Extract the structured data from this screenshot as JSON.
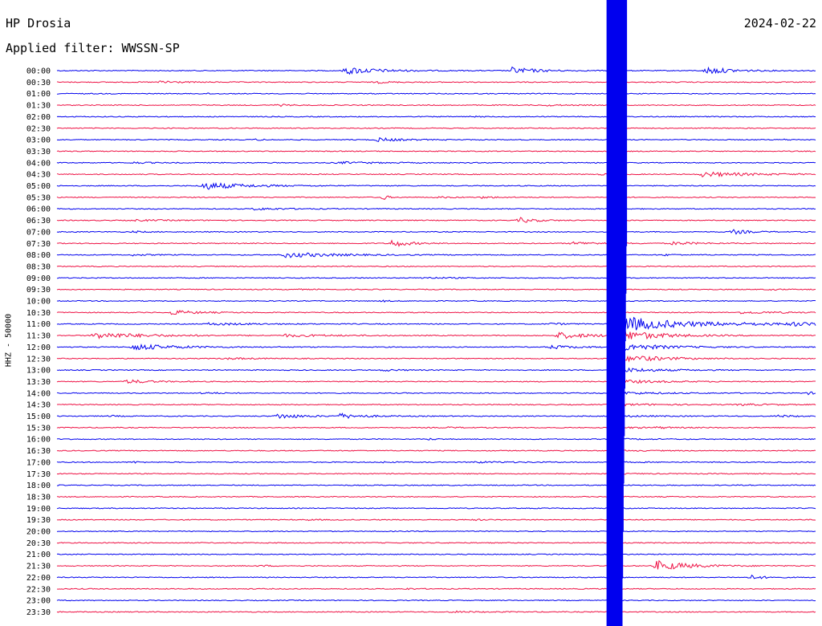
{
  "header": {
    "station": "HP Drosia",
    "date": "2024-02-22",
    "filter": "Applied filter: WWSSN-SP"
  },
  "axis": {
    "ylabel": "HHZ - 50000"
  },
  "colors": {
    "trace_a": "#0000ee",
    "trace_b": "#ee1144",
    "background": "#ffffff",
    "text": "#000000"
  },
  "chart_data": {
    "type": "line",
    "title": "HP Drosia",
    "subtitle": "Applied filter: WWSSN-SP",
    "ylabel": "HHZ - 50000",
    "tick_labels": [
      "00:00",
      "00:30",
      "01:00",
      "01:30",
      "02:00",
      "02:30",
      "03:00",
      "03:30",
      "04:00",
      "04:30",
      "05:00",
      "05:30",
      "06:00",
      "06:30",
      "07:00",
      "07:30",
      "08:00",
      "08:30",
      "09:00",
      "09:30",
      "10:00",
      "10:30",
      "11:00",
      "11:30",
      "12:00",
      "12:30",
      "13:00",
      "13:30",
      "14:00",
      "14:30",
      "15:00",
      "15:30",
      "16:00",
      "16:30",
      "17:00",
      "17:30",
      "18:00",
      "18:30",
      "19:00",
      "19:30",
      "20:00",
      "20:30",
      "21:00",
      "21:30",
      "22:00",
      "22:30",
      "23:00",
      "23:30"
    ],
    "row_minutes": 30,
    "grid": false,
    "major_event": {
      "start_row": 0,
      "end_row": 47,
      "t_frac_start": 0.725,
      "t_frac_end": 0.745,
      "peak_row": 22,
      "coda_end_row": 40
    },
    "events": [
      {
        "row": 0,
        "t": 0.043,
        "amp": 0.4,
        "dur": 0.004
      },
      {
        "row": 0,
        "t": 0.38,
        "amp": 3.0,
        "dur": 0.04
      },
      {
        "row": 0,
        "t": 0.6,
        "amp": 2.5,
        "dur": 0.03
      },
      {
        "row": 0,
        "t": 0.855,
        "amp": 3.0,
        "dur": 0.03
      },
      {
        "row": 1,
        "t": 0.135,
        "amp": 1.5,
        "dur": 0.02
      },
      {
        "row": 1,
        "t": 0.42,
        "amp": 0.8,
        "dur": 0.02
      },
      {
        "row": 2,
        "t": 0.2,
        "amp": 0.3,
        "dur": 0.01
      },
      {
        "row": 3,
        "t": 0.29,
        "amp": 0.8,
        "dur": 0.015
      },
      {
        "row": 3,
        "t": 0.645,
        "amp": 0.5,
        "dur": 0.02
      },
      {
        "row": 4,
        "t": 0.545,
        "amp": 0.5,
        "dur": 0.01
      },
      {
        "row": 6,
        "t": 0.26,
        "amp": 0.7,
        "dur": 0.01
      },
      {
        "row": 6,
        "t": 0.42,
        "amp": 1.5,
        "dur": 0.03
      },
      {
        "row": 6,
        "t": 0.955,
        "amp": 0.5,
        "dur": 0.01
      },
      {
        "row": 8,
        "t": 0.1,
        "amp": 0.6,
        "dur": 0.02
      },
      {
        "row": 8,
        "t": 0.37,
        "amp": 0.7,
        "dur": 0.05
      },
      {
        "row": 9,
        "t": 0.85,
        "amp": 1.8,
        "dur": 0.06
      },
      {
        "row": 9,
        "t": 0.715,
        "amp": 0.5,
        "dur": 0.01
      },
      {
        "row": 10,
        "t": 0.19,
        "amp": 3.0,
        "dur": 0.05
      },
      {
        "row": 11,
        "t": 0.43,
        "amp": 2.8,
        "dur": 0.005
      },
      {
        "row": 11,
        "t": 0.5,
        "amp": 0.6,
        "dur": 0.02
      },
      {
        "row": 11,
        "t": 0.56,
        "amp": 0.6,
        "dur": 0.02
      },
      {
        "row": 12,
        "t": 0.26,
        "amp": 0.8,
        "dur": 0.04
      },
      {
        "row": 13,
        "t": 0.1,
        "amp": 0.5,
        "dur": 0.05
      },
      {
        "row": 13,
        "t": 0.61,
        "amp": 2.0,
        "dur": 0.02
      },
      {
        "row": 14,
        "t": 0.1,
        "amp": 0.5,
        "dur": 0.02
      },
      {
        "row": 14,
        "t": 0.89,
        "amp": 1.8,
        "dur": 0.02
      },
      {
        "row": 15,
        "t": 0.44,
        "amp": 3.0,
        "dur": 0.02
      },
      {
        "row": 15,
        "t": 0.68,
        "amp": 1.0,
        "dur": 0.04
      },
      {
        "row": 15,
        "t": 0.81,
        "amp": 1.2,
        "dur": 0.03
      },
      {
        "row": 16,
        "t": 0.1,
        "amp": 0.6,
        "dur": 0.02
      },
      {
        "row": 16,
        "t": 0.3,
        "amp": 2.0,
        "dur": 0.06
      },
      {
        "row": 16,
        "t": 0.8,
        "amp": 0.5,
        "dur": 0.02
      },
      {
        "row": 18,
        "t": 0.48,
        "amp": 0.5,
        "dur": 0.04
      },
      {
        "row": 19,
        "t": 0.31,
        "amp": 0.6,
        "dur": 0.01
      },
      {
        "row": 19,
        "t": 0.94,
        "amp": 0.6,
        "dur": 0.01
      },
      {
        "row": 20,
        "t": 0.43,
        "amp": 0.5,
        "dur": 0.01
      },
      {
        "row": 21,
        "t": 0.15,
        "amp": 1.8,
        "dur": 0.03
      },
      {
        "row": 21,
        "t": 0.9,
        "amp": 0.7,
        "dur": 0.06
      },
      {
        "row": 22,
        "t": 0.2,
        "amp": 0.8,
        "dur": 0.06
      },
      {
        "row": 22,
        "t": 0.65,
        "amp": 0.8,
        "dur": 0.02
      },
      {
        "row": 22,
        "t": 0.97,
        "amp": 0.9,
        "dur": 0.03
      },
      {
        "row": 23,
        "t": 0.05,
        "amp": 2.5,
        "dur": 0.06
      },
      {
        "row": 23,
        "t": 0.3,
        "amp": 0.9,
        "dur": 0.06
      },
      {
        "row": 23,
        "t": 0.66,
        "amp": 2.5,
        "dur": 0.04
      },
      {
        "row": 24,
        "t": 0.1,
        "amp": 2.5,
        "dur": 0.05
      },
      {
        "row": 24,
        "t": 0.65,
        "amp": 1.5,
        "dur": 0.03
      },
      {
        "row": 25,
        "t": 0.22,
        "amp": 0.6,
        "dur": 0.04
      },
      {
        "row": 25,
        "t": 0.76,
        "amp": 0.6,
        "dur": 0.04
      },
      {
        "row": 26,
        "t": 0.43,
        "amp": 0.7,
        "dur": 0.02
      },
      {
        "row": 27,
        "t": 0.09,
        "amp": 1.5,
        "dur": 0.03
      },
      {
        "row": 28,
        "t": 0.19,
        "amp": 0.7,
        "dur": 0.02
      },
      {
        "row": 28,
        "t": 0.99,
        "amp": 0.9,
        "dur": 0.01
      },
      {
        "row": 29,
        "t": 0.9,
        "amp": 0.6,
        "dur": 0.04
      },
      {
        "row": 30,
        "t": 0.07,
        "amp": 0.6,
        "dur": 0.01
      },
      {
        "row": 30,
        "t": 0.29,
        "amp": 2.0,
        "dur": 0.03
      },
      {
        "row": 30,
        "t": 0.37,
        "amp": 2.0,
        "dur": 0.03
      },
      {
        "row": 30,
        "t": 0.95,
        "amp": 0.8,
        "dur": 0.02
      },
      {
        "row": 31,
        "t": 0.51,
        "amp": 0.5,
        "dur": 0.02
      },
      {
        "row": 31,
        "t": 0.79,
        "amp": 0.5,
        "dur": 0.02
      },
      {
        "row": 32,
        "t": 0.49,
        "amp": 0.6,
        "dur": 0.01
      },
      {
        "row": 34,
        "t": 0.1,
        "amp": 0.6,
        "dur": 0.01
      },
      {
        "row": 34,
        "t": 0.43,
        "amp": 0.5,
        "dur": 0.01
      },
      {
        "row": 34,
        "t": 0.55,
        "amp": 0.5,
        "dur": 0.05
      },
      {
        "row": 39,
        "t": 0.33,
        "amp": 0.5,
        "dur": 0.01
      },
      {
        "row": 39,
        "t": 0.55,
        "amp": 0.5,
        "dur": 0.01
      },
      {
        "row": 43,
        "t": 0.27,
        "amp": 0.6,
        "dur": 0.01
      },
      {
        "row": 43,
        "t": 0.79,
        "amp": 4.0,
        "dur": 0.04
      },
      {
        "row": 44,
        "t": 0.915,
        "amp": 1.6,
        "dur": 0.015
      },
      {
        "row": 45,
        "t": 0.46,
        "amp": 0.6,
        "dur": 0.01
      },
      {
        "row": 47,
        "t": 0.52,
        "amp": 0.6,
        "dur": 0.03
      }
    ]
  }
}
